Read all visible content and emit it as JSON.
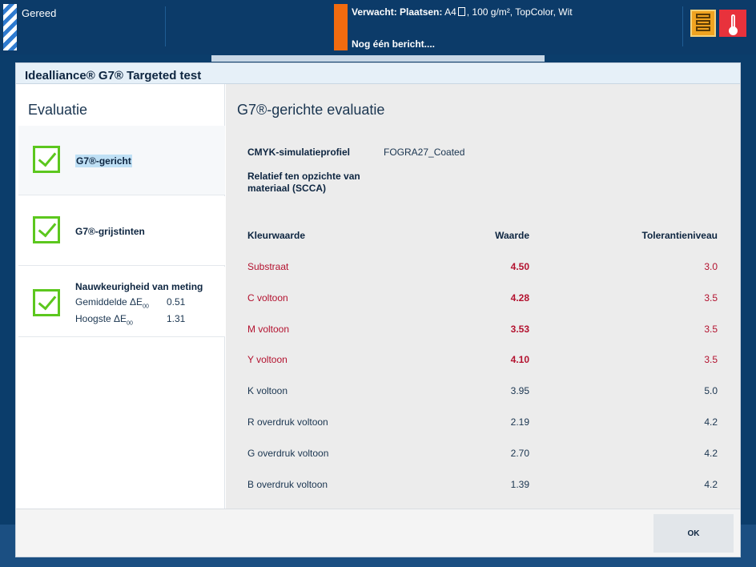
{
  "status": {
    "ready_label": "Gereed",
    "expected_label": "Verwacht: Plaatsen:",
    "expected_detail_pre": "A4",
    "expected_detail_post": ", 100 g/m², TopColor, Wit",
    "message_label": "Nog één bericht....",
    "accent_orange": "#f26b0f",
    "icons": [
      "storage-icon",
      "thermometer-icon",
      "document-icon"
    ]
  },
  "dialog": {
    "title": "Idealliance® G7® Targeted test",
    "left": {
      "heading": "Evaluatie",
      "items": [
        {
          "label": "G7®-gericht",
          "status": "pass",
          "selected": true
        },
        {
          "label": "G7®-grijstinten",
          "status": "pass"
        },
        {
          "label": "Nauwkeurigheid van meting",
          "status": "pass",
          "rows": [
            {
              "label": "Gemiddelde ΔE",
              "sub": "00",
              "value": "0.51"
            },
            {
              "label": "Hoogste ΔE",
              "sub": "00",
              "value": "1.31"
            }
          ]
        }
      ]
    },
    "right": {
      "heading": "G7®-gerichte evaluatie",
      "profile_label": "CMYK-simulatieprofiel",
      "profile_value": "FOGRA27_Coated",
      "relative_label": "Relatief ten opzichte van materiaal (SCCA)",
      "table": {
        "headers": [
          "Kleurwaarde",
          "Waarde",
          "Tolerantieniveau"
        ],
        "rows": [
          {
            "name": "Substraat",
            "value": "4.50",
            "tolerance": "3.0",
            "exceeds": true
          },
          {
            "name": "C voltoon",
            "value": "4.28",
            "tolerance": "3.5",
            "exceeds": true
          },
          {
            "name": "M voltoon",
            "value": "3.53",
            "tolerance": "3.5",
            "exceeds": true
          },
          {
            "name": "Y voltoon",
            "value": "4.10",
            "tolerance": "3.5",
            "exceeds": true
          },
          {
            "name": "K voltoon",
            "value": "3.95",
            "tolerance": "5.0",
            "exceeds": false
          },
          {
            "name": "R overdruk voltoon",
            "value": "2.19",
            "tolerance": "4.2",
            "exceeds": false
          },
          {
            "name": "G overdruk voltoon",
            "value": "2.70",
            "tolerance": "4.2",
            "exceeds": false
          },
          {
            "name": "B overdruk voltoon",
            "value": "1.39",
            "tolerance": "4.2",
            "exceeds": false
          }
        ]
      },
      "warn_color": "#b3122f",
      "pass_color": "#5cc71e"
    },
    "ok_label": "OK"
  }
}
